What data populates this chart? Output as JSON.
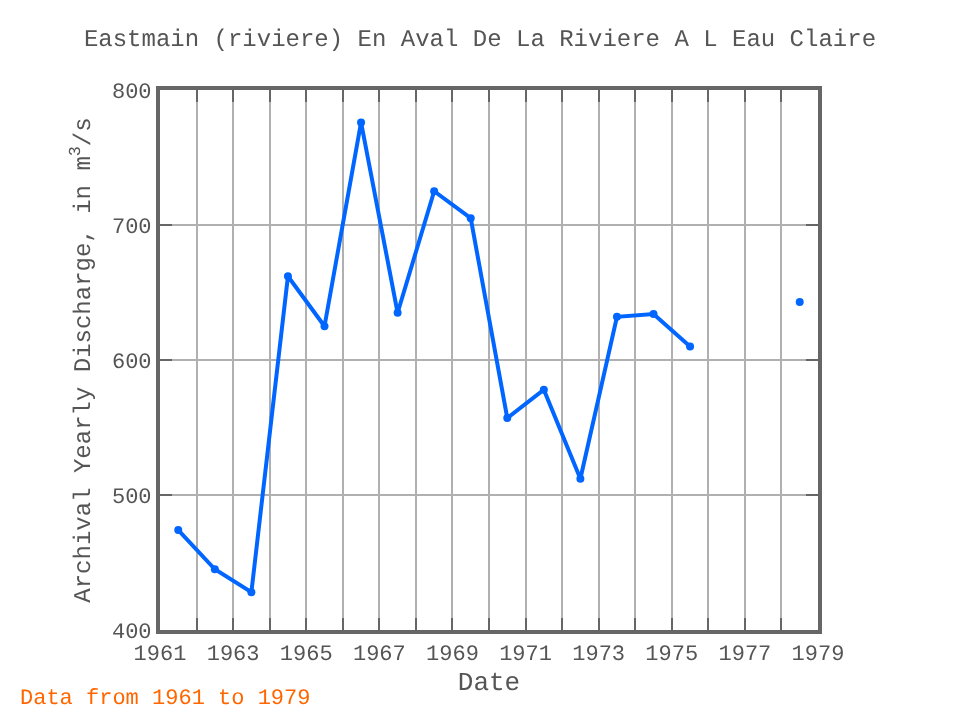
{
  "chart_data": {
    "type": "line",
    "title": "Eastmain (riviere) En Aval De La Riviere A L Eau Claire",
    "xlabel": "Date",
    "ylabel": "Archival Yearly Discharge, in m$^{3}$/s",
    "x": [
      1961.5,
      1962.5,
      1963.5,
      1964.5,
      1965.5,
      1966.5,
      1967.5,
      1968.5,
      1969.5,
      1970.5,
      1971.5,
      1972.5,
      1973.5,
      1974.5,
      1975.5,
      1976.5,
      1977.5,
      1978.5
    ],
    "series": [
      {
        "color": "#0066ff",
        "values": [
          474,
          445,
          428,
          662,
          625,
          776,
          635,
          725,
          705,
          557,
          578,
          512,
          632,
          634,
          610,
          null,
          null,
          643
        ]
      }
    ],
    "xlim": [
      1961,
      1979
    ],
    "xticks": [
      1961,
      {
        "value": 1962,
        "label": null
      },
      1963,
      {
        "value": 1964,
        "label": null
      },
      1965,
      {
        "value": 1966,
        "label": null
      },
      1967,
      {
        "value": 1968,
        "label": null
      },
      1969,
      {
        "value": 1970,
        "label": null
      },
      1971,
      {
        "value": 1972,
        "label": null
      },
      1973,
      {
        "value": 1974,
        "label": null
      },
      1975,
      {
        "value": 1976,
        "label": null
      },
      1977,
      {
        "value": 1978,
        "label": null
      },
      1979
    ],
    "ylim": [
      400,
      800
    ],
    "yticks": [
      400,
      500,
      600,
      700,
      800
    ],
    "grid": true,
    "marker": "circle",
    "line_style": "solid",
    "annotations": [
      "Data from 1961 to 1979"
    ]
  }
}
